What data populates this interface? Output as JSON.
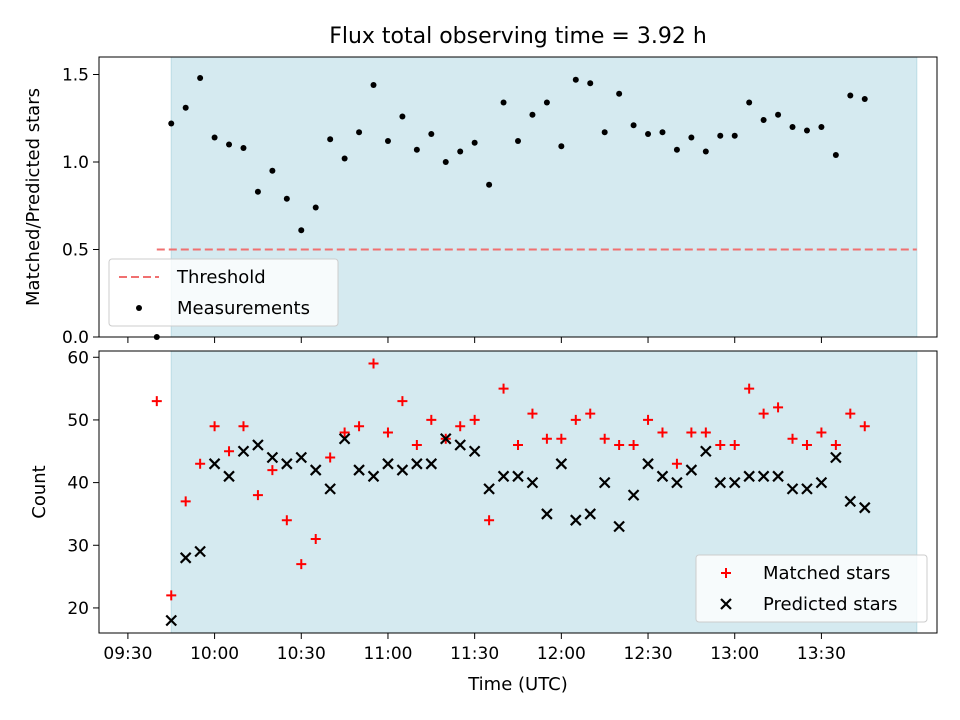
{
  "chart_data": [
    {
      "type": "scatter",
      "title": "Flux total observing time = 3.92 h",
      "ylabel": "Matched/Predicted stars",
      "xlabel": "",
      "xlim": [
        "09:20",
        "14:10"
      ],
      "ylim": [
        0,
        1.6
      ],
      "yticks": [
        "0.0",
        "0.5",
        "1.0",
        "1.5"
      ],
      "shaded_span": [
        "09:45",
        "14:03"
      ],
      "shaded_color": "#d5eaf0",
      "grid": false,
      "legend_position": "lower-left",
      "legend": [
        {
          "label": "Threshold",
          "marker": "dashed-line",
          "color": "#f07070"
        },
        {
          "label": "Measurements",
          "marker": "dot",
          "color": "#000000"
        }
      ],
      "threshold": {
        "name": "Threshold",
        "value": 0.5,
        "x_start": "09:40",
        "x_end": "14:03",
        "color": "#f07070"
      },
      "series": [
        {
          "name": "Measurements",
          "color": "#000000",
          "x": [
            "09:40",
            "09:45",
            "09:50",
            "09:55",
            "10:00",
            "10:05",
            "10:10",
            "10:15",
            "10:20",
            "10:25",
            "10:30",
            "10:35",
            "10:40",
            "10:45",
            "10:50",
            "10:55",
            "11:00",
            "11:05",
            "11:10",
            "11:15",
            "11:20",
            "11:25",
            "11:30",
            "11:35",
            "11:40",
            "11:45",
            "11:50",
            "11:55",
            "12:00",
            "12:05",
            "12:10",
            "12:15",
            "12:20",
            "12:25",
            "12:30",
            "12:35",
            "12:40",
            "12:45",
            "12:50",
            "12:55",
            "13:00",
            "13:05",
            "13:10",
            "13:15",
            "13:20",
            "13:25",
            "13:30",
            "13:35",
            "13:40",
            "13:45"
          ],
          "y": [
            0.0,
            1.22,
            1.31,
            1.48,
            1.14,
            1.1,
            1.08,
            0.83,
            0.95,
            0.79,
            0.61,
            0.74,
            1.13,
            1.02,
            1.17,
            1.44,
            1.12,
            1.26,
            1.07,
            1.16,
            1.0,
            1.06,
            1.11,
            0.87,
            1.34,
            1.12,
            1.27,
            1.34,
            1.09,
            1.47,
            1.45,
            1.17,
            1.39,
            1.21,
            1.16,
            1.17,
            1.07,
            1.14,
            1.06,
            1.15,
            1.15,
            1.34,
            1.24,
            1.27,
            1.2,
            1.18,
            1.2,
            1.04,
            1.38,
            1.36
          ]
        }
      ]
    },
    {
      "type": "scatter",
      "title": "",
      "ylabel": "Count",
      "xlabel": "Time (UTC)",
      "xlim": [
        "09:20",
        "14:10"
      ],
      "ylim": [
        16,
        61
      ],
      "yticks": [
        "20",
        "30",
        "40",
        "50",
        "60"
      ],
      "xticks": [
        "09:30",
        "10:00",
        "10:30",
        "11:00",
        "11:30",
        "12:00",
        "12:30",
        "13:00",
        "13:30"
      ],
      "shaded_span": [
        "09:45",
        "14:03"
      ],
      "shaded_color": "#d5eaf0",
      "grid": false,
      "legend_position": "lower-right",
      "legend": [
        {
          "label": "Matched stars",
          "marker": "plus",
          "color": "#ff0000"
        },
        {
          "label": "Predicted stars",
          "marker": "x",
          "color": "#000000"
        }
      ],
      "series": [
        {
          "name": "Matched stars",
          "color": "#ff0000",
          "x": [
            "09:40",
            "09:45",
            "09:50",
            "09:55",
            "10:00",
            "10:05",
            "10:10",
            "10:15",
            "10:20",
            "10:25",
            "10:30",
            "10:35",
            "10:40",
            "10:45",
            "10:50",
            "10:55",
            "11:00",
            "11:05",
            "11:10",
            "11:15",
            "11:20",
            "11:25",
            "11:30",
            "11:35",
            "11:40",
            "11:45",
            "11:50",
            "11:55",
            "12:00",
            "12:05",
            "12:10",
            "12:15",
            "12:20",
            "12:25",
            "12:30",
            "12:35",
            "12:40",
            "12:45",
            "12:50",
            "12:55",
            "13:00",
            "13:05",
            "13:10",
            "13:15",
            "13:20",
            "13:25",
            "13:30",
            "13:35",
            "13:40",
            "13:45"
          ],
          "y": [
            53,
            22,
            37,
            43,
            49,
            45,
            49,
            38,
            42,
            34,
            27,
            31,
            44,
            48,
            49,
            59,
            48,
            53,
            46,
            50,
            47,
            49,
            50,
            34,
            55,
            46,
            51,
            47,
            47,
            50,
            51,
            47,
            46,
            46,
            50,
            48,
            43,
            48,
            48,
            46,
            46,
            55,
            51,
            52,
            47,
            46,
            48,
            46,
            51,
            49
          ]
        },
        {
          "name": "Predicted stars",
          "color": "#000000",
          "x": [
            "09:45",
            "09:50",
            "09:55",
            "10:00",
            "10:05",
            "10:10",
            "10:15",
            "10:20",
            "10:25",
            "10:30",
            "10:35",
            "10:40",
            "10:45",
            "10:50",
            "10:55",
            "11:00",
            "11:05",
            "11:10",
            "11:15",
            "11:20",
            "11:25",
            "11:30",
            "11:35",
            "11:40",
            "11:45",
            "11:50",
            "11:55",
            "12:00",
            "12:05",
            "12:10",
            "12:15",
            "12:20",
            "12:25",
            "12:30",
            "12:35",
            "12:40",
            "12:45",
            "12:50",
            "12:55",
            "13:00",
            "13:05",
            "13:10",
            "13:15",
            "13:20",
            "13:25",
            "13:30",
            "13:35",
            "13:40",
            "13:45"
          ],
          "y": [
            18,
            28,
            29,
            43,
            41,
            45,
            46,
            44,
            43,
            44,
            42,
            39,
            47,
            42,
            41,
            43,
            42,
            43,
            43,
            47,
            46,
            45,
            39,
            41,
            41,
            40,
            35,
            43,
            34,
            35,
            40,
            33,
            38,
            43,
            41,
            40,
            42,
            45,
            40,
            40,
            41,
            41,
            41,
            39,
            39,
            40,
            44,
            37,
            36
          ]
        }
      ]
    }
  ]
}
